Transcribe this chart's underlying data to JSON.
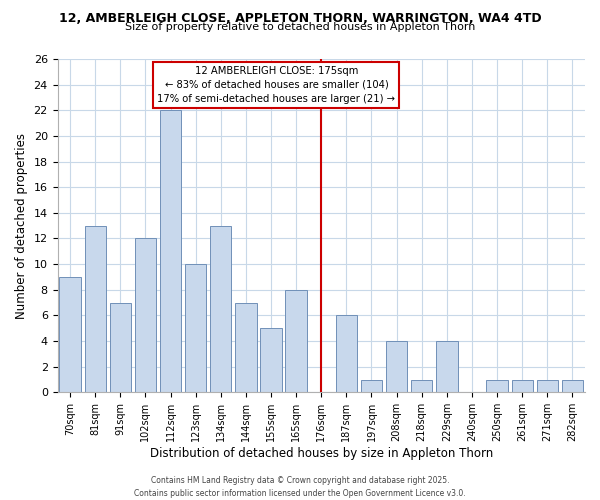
{
  "title1": "12, AMBERLEIGH CLOSE, APPLETON THORN, WARRINGTON, WA4 4TD",
  "title2": "Size of property relative to detached houses in Appleton Thorn",
  "xlabel": "Distribution of detached houses by size in Appleton Thorn",
  "ylabel": "Number of detached properties",
  "categories": [
    "70sqm",
    "81sqm",
    "91sqm",
    "102sqm",
    "112sqm",
    "123sqm",
    "134sqm",
    "144sqm",
    "155sqm",
    "165sqm",
    "176sqm",
    "187sqm",
    "197sqm",
    "208sqm",
    "218sqm",
    "229sqm",
    "240sqm",
    "250sqm",
    "261sqm",
    "271sqm",
    "282sqm"
  ],
  "values": [
    9,
    13,
    7,
    12,
    22,
    10,
    13,
    7,
    5,
    8,
    0,
    6,
    1,
    4,
    1,
    4,
    0,
    1,
    1,
    1,
    1
  ],
  "bar_color": "#c8d8ec",
  "bar_edge_color": "#7090b8",
  "grid_color": "#c8d8e8",
  "background_color": "#ffffff",
  "vline_color": "#cc0000",
  "vline_x": 10,
  "annotation_text_line1": "12 AMBERLEIGH CLOSE: 175sqm",
  "annotation_text_line2": "← 83% of detached houses are smaller (104)",
  "annotation_text_line3": "17% of semi-detached houses are larger (21) →",
  "ylim": [
    0,
    26
  ],
  "yticks": [
    0,
    2,
    4,
    6,
    8,
    10,
    12,
    14,
    16,
    18,
    20,
    22,
    24,
    26
  ],
  "footer1": "Contains HM Land Registry data © Crown copyright and database right 2025.",
  "footer2": "Contains public sector information licensed under the Open Government Licence v3.0."
}
